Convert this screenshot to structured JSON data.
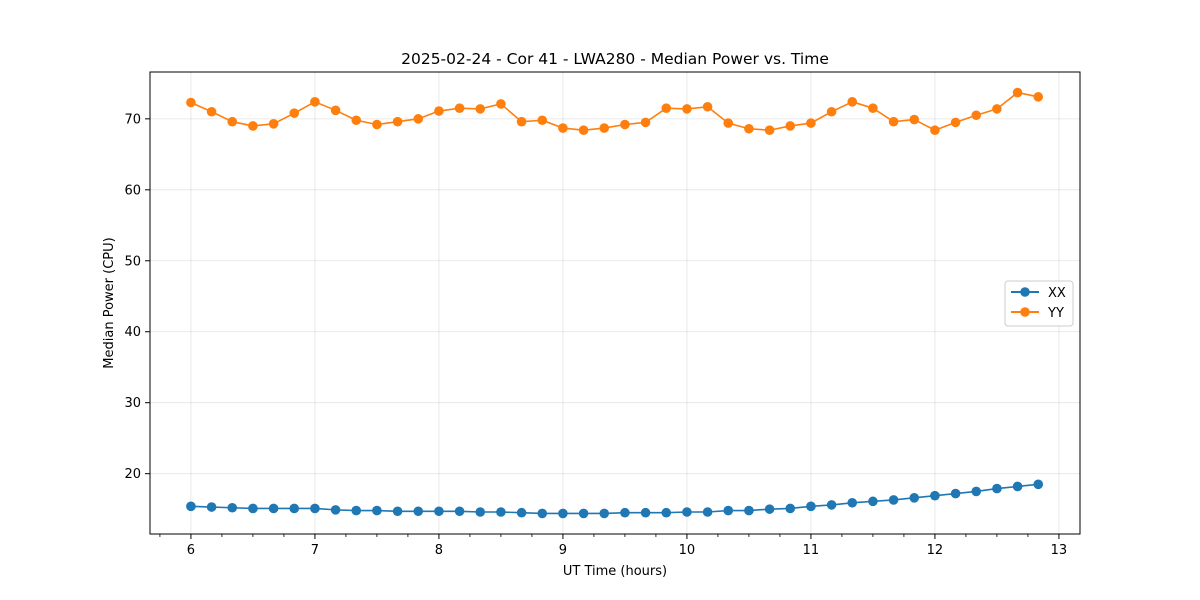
{
  "chart_data": {
    "type": "line",
    "title": "2025-02-24 - Cor 41 - LWA280 - Median Power vs. Time",
    "xlabel": "UT Time (hours)",
    "ylabel": "Median Power (CPU)",
    "xlim": [
      5.67,
      13.17
    ],
    "ylim": [
      11.5,
      76.6
    ],
    "xticks": [
      6,
      7,
      8,
      9,
      10,
      11,
      12,
      13
    ],
    "xtick_labels": [
      "6",
      "7",
      "8",
      "9",
      "10",
      "11",
      "12",
      "13"
    ],
    "xminor_step": 0.25,
    "yticks": [
      20,
      30,
      40,
      50,
      60,
      70
    ],
    "ytick_labels": [
      "20",
      "30",
      "40",
      "50",
      "60",
      "70"
    ],
    "grid": true,
    "legend": "center-right",
    "x": [
      6.0,
      6.1667,
      6.3333,
      6.5,
      6.6667,
      6.8333,
      7.0,
      7.1667,
      7.3333,
      7.5,
      7.6667,
      7.8333,
      8.0,
      8.1667,
      8.3333,
      8.5,
      8.6667,
      8.8333,
      9.0,
      9.1667,
      9.3333,
      9.5,
      9.6667,
      9.8333,
      10.0,
      10.1667,
      10.3333,
      10.5,
      10.6667,
      10.8333,
      11.0,
      11.1667,
      11.3333,
      11.5,
      11.6667,
      11.8333,
      12.0,
      12.1667,
      12.3333,
      12.5,
      12.6667,
      12.8333
    ],
    "series": [
      {
        "name": "XX",
        "color": "#1f77b4",
        "values": [
          15.4,
          15.3,
          15.2,
          15.1,
          15.1,
          15.1,
          15.1,
          14.9,
          14.8,
          14.8,
          14.7,
          14.7,
          14.7,
          14.7,
          14.6,
          14.6,
          14.5,
          14.4,
          14.4,
          14.4,
          14.4,
          14.5,
          14.5,
          14.5,
          14.6,
          14.6,
          14.8,
          14.8,
          15.0,
          15.1,
          15.4,
          15.6,
          15.9,
          16.1,
          16.3,
          16.6,
          16.9,
          17.2,
          17.5,
          17.9,
          18.2,
          18.5
        ]
      },
      {
        "name": "YY",
        "color": "#ff7f0e",
        "values": [
          72.3,
          71.0,
          69.6,
          69.0,
          69.3,
          70.8,
          72.4,
          71.2,
          69.8,
          69.2,
          69.6,
          70.0,
          71.1,
          71.5,
          71.4,
          72.1,
          69.6,
          69.8,
          68.7,
          68.4,
          68.7,
          69.2,
          69.5,
          71.5,
          71.4,
          71.7,
          69.4,
          68.6,
          68.4,
          69.0,
          69.4,
          71.0,
          72.4,
          71.5,
          69.6,
          69.9,
          68.4,
          69.5,
          70.5,
          71.4,
          73.7,
          73.1
        ]
      }
    ]
  }
}
